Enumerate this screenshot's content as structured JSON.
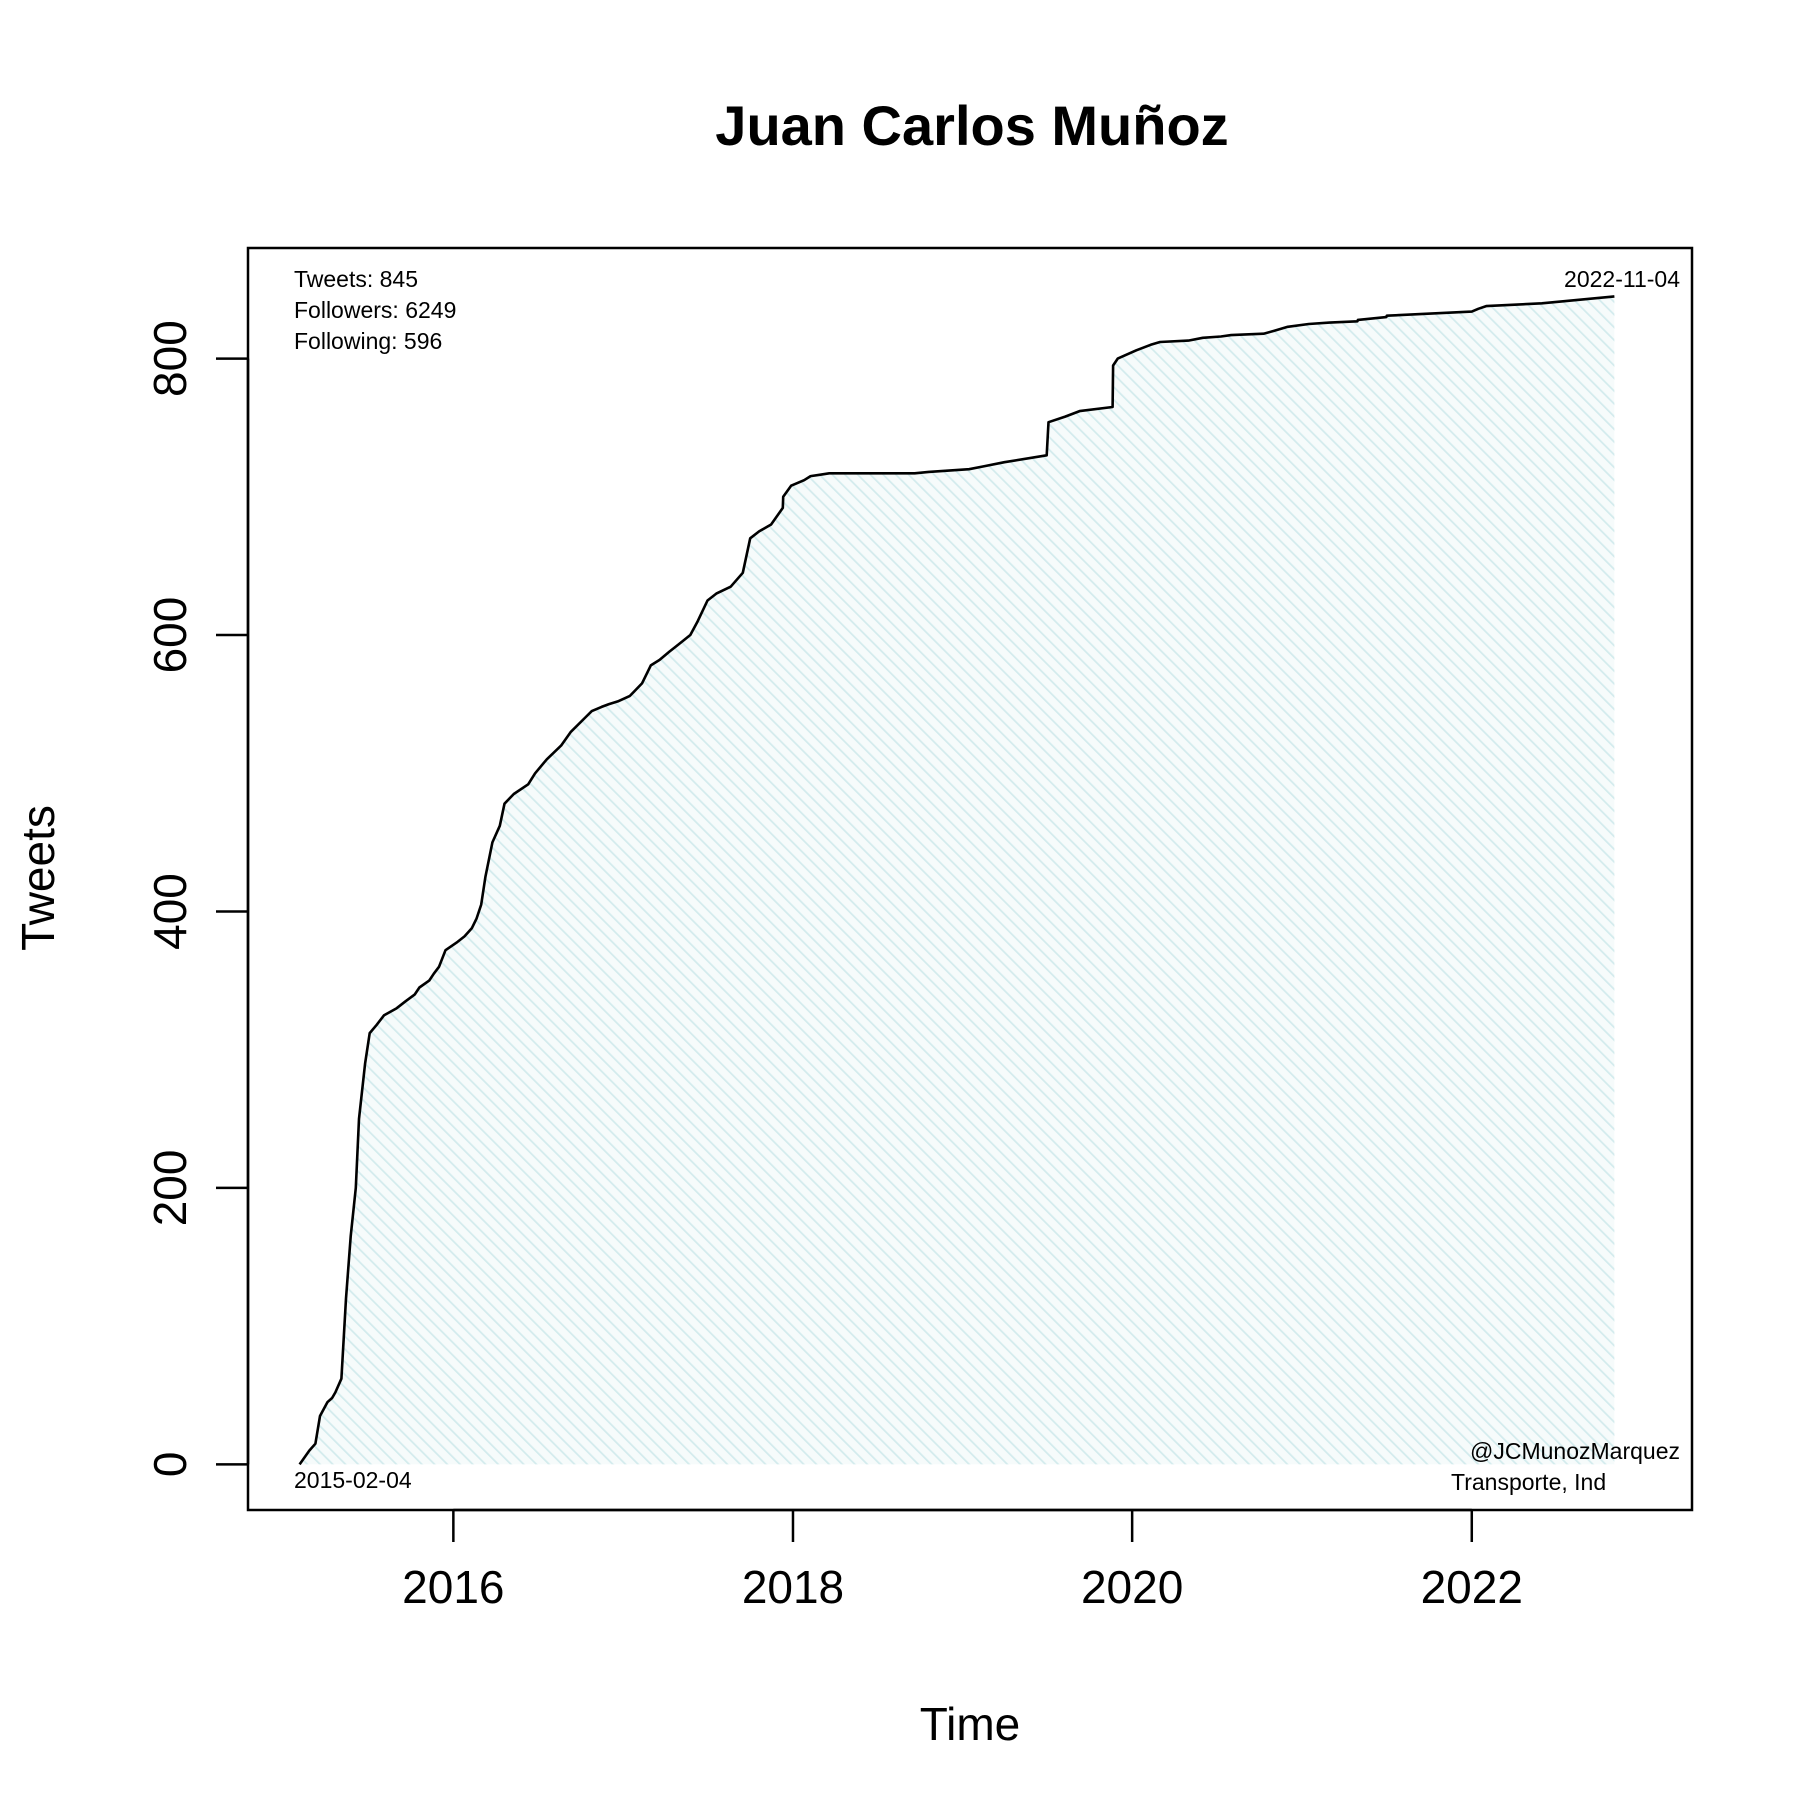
{
  "chart_data": {
    "type": "line",
    "title": "Juan Carlos Muñoz",
    "xlabel": "Time",
    "ylabel": "Tweets",
    "xlim": [
      "2014-10-16",
      "2023-04-20"
    ],
    "ylim": [
      -33,
      880
    ],
    "x_ticks": [
      "2016",
      "2018",
      "2020",
      "2022"
    ],
    "y_ticks": [
      "0",
      "200",
      "400",
      "600",
      "800"
    ],
    "grid": false,
    "area_fill": "hatched light blue",
    "stats": [
      "Tweets: 845",
      "Followers: 6249",
      "Following: 596"
    ],
    "start_label": "2015-02-04",
    "end_label": "2022-11-04",
    "handle": "@JCMunozMarquez",
    "category": "Transporte, Ind",
    "series": [
      {
        "x": [
          "2015-02-04",
          "2015-02-25",
          "2015-03-10",
          "2015-03-20",
          "2015-04-05",
          "2015-04-15",
          "2015-04-22",
          "2015-05-05",
          "2015-05-15",
          "2015-05-25",
          "2015-06-05",
          "2015-06-12",
          "2015-06-25",
          "2015-07-05",
          "2015-07-20",
          "2015-08-05",
          "2015-09-01",
          "2015-09-20",
          "2015-10-10",
          "2015-10-20",
          "2015-11-10",
          "2015-11-20",
          "2015-12-01",
          "2015-12-15",
          "2016-01-10",
          "2016-01-25",
          "2016-02-10",
          "2016-02-20",
          "2016-03-01",
          "2016-03-10",
          "2016-03-25",
          "2016-04-10",
          "2016-04-20",
          "2016-05-10",
          "2016-06-10",
          "2016-06-25",
          "2016-07-20",
          "2016-08-20",
          "2016-09-10",
          "2016-10-10",
          "2016-10-25",
          "2016-11-15",
          "2016-12-01",
          "2016-12-20",
          "2017-01-15",
          "2017-02-10",
          "2017-03-01",
          "2017-03-20",
          "2017-04-10",
          "2017-04-25",
          "2017-05-10",
          "2017-05-25",
          "2017-06-10",
          "2017-07-01",
          "2017-07-20",
          "2017-08-20",
          "2017-09-15",
          "2017-10-01",
          "2017-10-20",
          "2017-11-15",
          "2017-12-10",
          "2017-12-11",
          "2017-12-28",
          "2018-01-25",
          "2018-02-08",
          "2018-03-01",
          "2018-03-20",
          "2018-09-20",
          "2018-10-20",
          "2019-01-15",
          "2019-02-15",
          "2019-04-01",
          "2019-07-01",
          "2019-07-05",
          "2019-08-10",
          "2019-09-10",
          "2019-11-20",
          "2019-11-21",
          "2019-12-01",
          "2020-01-10",
          "2020-02-10",
          "2020-03-01",
          "2020-05-01",
          "2020-06-01",
          "2020-07-10",
          "2020-08-01",
          "2020-10-10",
          "2020-11-01",
          "2020-12-01",
          "2021-01-15",
          "2021-03-01",
          "2021-04-30",
          "2021-05-01",
          "2021-07-01",
          "2021-07-02",
          "2021-09-01",
          "2022-01-01",
          "2022-01-15",
          "2022-02-01",
          "2022-06-01",
          "2022-11-04"
        ],
        "values": [
          0,
          10,
          15,
          35,
          45,
          48,
          52,
          62,
          120,
          165,
          200,
          250,
          290,
          312,
          318,
          325,
          330,
          335,
          340,
          345,
          350,
          355,
          360,
          372,
          378,
          382,
          388,
          395,
          405,
          425,
          450,
          462,
          478,
          485,
          492,
          500,
          510,
          520,
          530,
          540,
          545,
          548,
          550,
          552,
          556,
          565,
          578,
          582,
          588,
          592,
          596,
          600,
          610,
          625,
          630,
          635,
          645,
          670,
          675,
          680,
          692,
          700,
          708,
          712,
          715,
          716,
          717,
          717,
          718,
          720,
          722,
          725,
          730,
          754,
          758,
          762,
          765,
          795,
          800,
          806,
          810,
          812,
          813,
          815,
          816,
          817,
          818,
          820,
          823,
          825,
          826,
          827,
          828,
          830,
          831,
          832,
          834,
          836,
          838,
          840,
          845
        ]
      }
    ]
  }
}
